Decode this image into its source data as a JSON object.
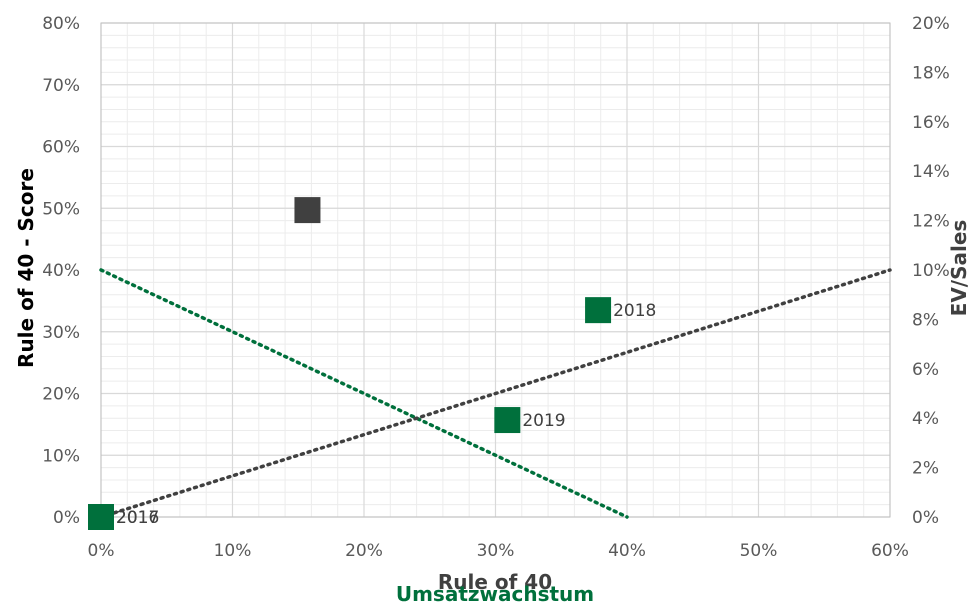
{
  "chart_data": {
    "type": "scatter",
    "x_axis": {
      "labels": [
        "Rule of 40",
        "Umsatzwachstum"
      ],
      "range": [
        0,
        0.6
      ],
      "ticks": [
        "0%",
        "10%",
        "20%",
        "30%",
        "40%",
        "50%",
        "60%"
      ]
    },
    "y_axis_left": {
      "label": "Rule of 40 - Score",
      "range": [
        0,
        0.8
      ],
      "ticks": [
        "0%",
        "10%",
        "20%",
        "30%",
        "40%",
        "50%",
        "60%",
        "70%",
        "80%"
      ]
    },
    "y_axis_right": {
      "label": "EV/Sales",
      "range": [
        0,
        0.2
      ],
      "ticks": [
        "0%",
        "2%",
        "4%",
        "6%",
        "8%",
        "10%",
        "12%",
        "14%",
        "16%",
        "18%",
        "20%"
      ]
    },
    "grid": true,
    "series": [
      {
        "color": "#00703c",
        "marker": "square",
        "points": [
          {
            "x": 0.0,
            "y": 0.0,
            "label": "2017"
          },
          {
            "x": 0.378,
            "y": 0.335,
            "label": "2018"
          },
          {
            "x": 0.309,
            "y": 0.157,
            "label": "2019"
          }
        ]
      },
      {
        "color": "#404040",
        "marker": "square",
        "points": [
          {
            "x": 0.0,
            "y": 0.0,
            "label": "2016"
          },
          {
            "x": 0.157,
            "y": 0.497,
            "label": ""
          }
        ]
      }
    ],
    "trendlines": [
      {
        "color": "#00703c",
        "style": "dotted",
        "from": [
          0,
          0.4
        ],
        "to": [
          0.4,
          0
        ]
      },
      {
        "color": "#404040",
        "style": "dotted",
        "from": [
          0,
          0
        ],
        "to": [
          0.6,
          0.4
        ]
      }
    ],
    "colors": {
      "green": "#00703c",
      "dark": "#404040",
      "grid": "#d9d9d9",
      "tick": "#595959"
    }
  }
}
